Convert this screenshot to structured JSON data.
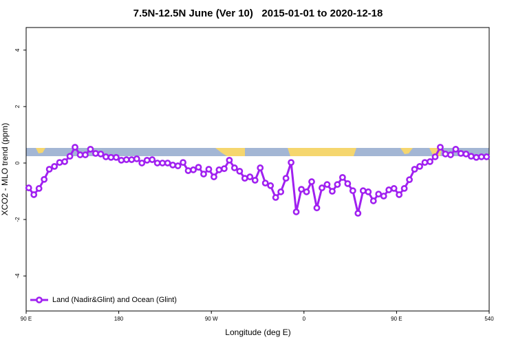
{
  "chart_data": {
    "type": "line",
    "title": "7.5N-12.5N June (Ver 10)   2015-01-01 to 2020-12-18",
    "x_label": "Longitude (deg E)",
    "y_label": "XCO2 - MLO trend (ppm)",
    "x": [
      92.5,
      97.5,
      102.5,
      107.5,
      112.5,
      117.5,
      122.5,
      127.5,
      132.5,
      137.5,
      142.5,
      147.5,
      152.5,
      157.5,
      162.5,
      167.5,
      172.5,
      177.5,
      182.5,
      187.5,
      192.5,
      197.5,
      202.5,
      207.5,
      212.5,
      217.5,
      222.5,
      227.5,
      232.5,
      237.5,
      242.5,
      247.5,
      252.5,
      257.5,
      262.5,
      267.5,
      272.5,
      277.5,
      282.5,
      287.5,
      292.5,
      297.5,
      302.5,
      307.5,
      312.5,
      317.5,
      322.5,
      327.5,
      332.5,
      337.5,
      342.5,
      347.5,
      352.5,
      357.5,
      362.5,
      367.5,
      372.5,
      377.5,
      382.5,
      387.5,
      392.5,
      397.5,
      402.5,
      407.5,
      412.5,
      417.5,
      422.5,
      427.5,
      432.5,
      437.5,
      442.5,
      447.5,
      452.5,
      457.5,
      462.5,
      467.5,
      472.5,
      477.5,
      482.5,
      487.5,
      492.5,
      497.5,
      502.5,
      507.5,
      512.5,
      517.5,
      522.5,
      527.5,
      532.5,
      537.5
    ],
    "series": [
      {
        "name": "Land (Nadir&Glint) and Ocean (Glint)",
        "color": "#a020f0",
        "values": [
          -0.88,
          -1.12,
          -0.9,
          -0.58,
          -0.22,
          -0.12,
          0.02,
          0.05,
          0.24,
          0.56,
          0.29,
          0.29,
          0.49,
          0.34,
          0.32,
          0.22,
          0.2,
          0.2,
          0.1,
          0.12,
          0.12,
          0.15,
          0,
          0.1,
          0.12,
          0,
          0,
          0,
          -0.07,
          -0.1,
          0.02,
          -0.27,
          -0.24,
          -0.15,
          -0.39,
          -0.22,
          -0.49,
          -0.24,
          -0.2,
          0.1,
          -0.17,
          -0.29,
          -0.54,
          -0.49,
          -0.61,
          -0.17,
          -0.71,
          -0.8,
          -1.22,
          -1.02,
          -0.54,
          0.02,
          -1.73,
          -0.93,
          -1.02,
          -0.66,
          -1.59,
          -0.88,
          -0.76,
          -1.0,
          -0.76,
          -0.51,
          -0.73,
          -0.98,
          -1.78,
          -0.98,
          -1.02,
          -1.34,
          -1.1,
          -1.17,
          -0.95,
          -0.9,
          -1.12,
          -0.9,
          -0.59,
          -0.22,
          -0.12,
          0.02,
          0.05,
          0.22,
          0.56,
          0.32,
          0.29,
          0.49,
          0.34,
          0.32,
          0.24,
          0.2,
          0.22,
          0.22
        ]
      }
    ],
    "xlim": [
      90,
      540
    ],
    "xticks": [
      {
        "value": 90,
        "label": "90 E"
      },
      180,
      {
        "value": 270,
        "label": "90 W"
      },
      {
        "value": 360,
        "label": "0"
      },
      {
        "value": 450,
        "label": "90 E"
      },
      540
    ],
    "ylim": [
      -5.24,
      4.8
    ],
    "yticks": [
      -4,
      -2,
      0,
      2,
      4
    ],
    "legend": "bottom-left"
  }
}
